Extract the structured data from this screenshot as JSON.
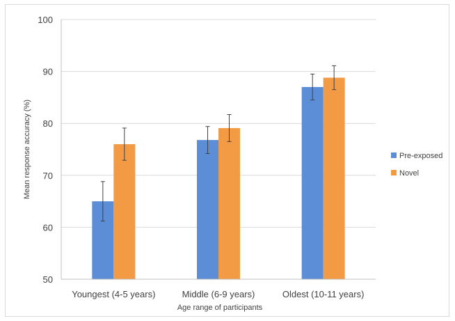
{
  "chart_data": {
    "type": "bar",
    "title": "",
    "xlabel": "Age range of participants",
    "ylabel": "Mean response accuracy (%)",
    "ylim": [
      50,
      100
    ],
    "yticks": [
      "50",
      "60",
      "70",
      "80",
      "90",
      "100"
    ],
    "categories": [
      "Youngest (4-5 years)",
      "Middle (6-9 years)",
      "Oldest (10-11 years)"
    ],
    "grid": true,
    "legend_position": "right",
    "series": [
      {
        "name": "Pre-exposed",
        "color": "#5b8ed6",
        "values": [
          65.0,
          76.8,
          87.0
        ],
        "error": [
          3.8,
          2.6,
          2.5
        ]
      },
      {
        "name": "Novel",
        "color": "#f39a45",
        "values": [
          76.0,
          79.1,
          88.8
        ],
        "error": [
          3.1,
          2.6,
          2.3
        ]
      }
    ]
  }
}
